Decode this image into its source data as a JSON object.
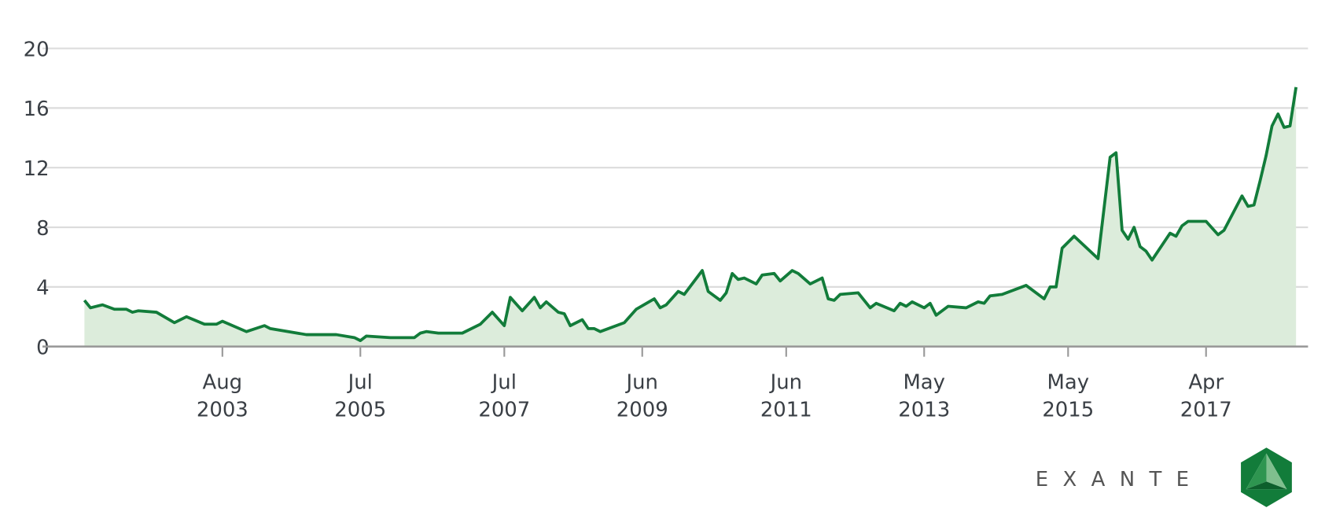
{
  "brand": "EXANTE",
  "chart_data": {
    "type": "line",
    "x": [
      "2001-09",
      "2001-10",
      "2001-12",
      "2002-02",
      "2002-04",
      "2002-05",
      "2002-06",
      "2002-09",
      "2002-12",
      "2003-02",
      "2003-05",
      "2003-07",
      "2003-08",
      "2003-12",
      "2004-03",
      "2004-04",
      "2004-10",
      "2005-03",
      "2005-06",
      "2005-07",
      "2005-08",
      "2005-12",
      "2006-04",
      "2006-05",
      "2006-06",
      "2006-08",
      "2006-12",
      "2007-03",
      "2007-05",
      "2007-07",
      "2007-08",
      "2007-10",
      "2007-12",
      "2008-01",
      "2008-02",
      "2008-04",
      "2008-05",
      "2008-06",
      "2008-08",
      "2008-09",
      "2008-10",
      "2008-11",
      "2009-03",
      "2009-05",
      "2009-08",
      "2009-09",
      "2009-10",
      "2009-12",
      "2010-01",
      "2010-04",
      "2010-05",
      "2010-07",
      "2010-08",
      "2010-09",
      "2010-10",
      "2010-11",
      "2011-01",
      "2011-02",
      "2011-04",
      "2011-05",
      "2011-07",
      "2011-08",
      "2011-10",
      "2011-12",
      "2012-01",
      "2012-02",
      "2012-03",
      "2012-06",
      "2012-08",
      "2012-09",
      "2012-12",
      "2013-01",
      "2013-02",
      "2013-03",
      "2013-05",
      "2013-06",
      "2013-07",
      "2013-09",
      "2013-12",
      "2014-02",
      "2014-03",
      "2014-04",
      "2014-06",
      "2014-10",
      "2015-01",
      "2015-02",
      "2015-03",
      "2015-04",
      "2015-06",
      "2015-10",
      "2015-12",
      "2016-01",
      "2016-02",
      "2016-03",
      "2016-04",
      "2016-05",
      "2016-06",
      "2016-07",
      "2016-10",
      "2016-11",
      "2016-12",
      "2017-01",
      "2017-04",
      "2017-06",
      "2017-07",
      "2017-10",
      "2017-11",
      "2017-12",
      "2018-01",
      "2018-02",
      "2018-03",
      "2018-04",
      "2018-05",
      "2018-06",
      "2018-07"
    ],
    "series": [
      {
        "color": "#127c3a",
        "fill": "#dcecdb",
        "values": [
          3.1,
          2.6,
          2.8,
          2.5,
          2.5,
          2.3,
          2.4,
          2.3,
          1.6,
          2.0,
          1.5,
          1.5,
          1.7,
          1.0,
          1.4,
          1.2,
          0.8,
          0.8,
          0.6,
          0.4,
          0.7,
          0.6,
          0.6,
          0.9,
          1.0,
          0.9,
          0.9,
          1.5,
          2.3,
          1.4,
          3.3,
          2.4,
          3.3,
          2.6,
          3.0,
          2.3,
          2.2,
          1.4,
          1.8,
          1.2,
          1.2,
          1.0,
          1.6,
          2.5,
          3.2,
          2.6,
          2.8,
          3.7,
          3.5,
          5.1,
          3.7,
          3.1,
          3.6,
          4.9,
          4.5,
          4.6,
          4.2,
          4.8,
          4.9,
          4.4,
          5.1,
          4.9,
          4.2,
          4.6,
          3.2,
          3.1,
          3.5,
          3.6,
          2.6,
          2.9,
          2.4,
          2.9,
          2.7,
          3.0,
          2.6,
          2.9,
          2.1,
          2.7,
          2.6,
          3.0,
          2.9,
          3.4,
          3.5,
          4.1,
          3.2,
          4.0,
          4.0,
          6.6,
          7.4,
          5.9,
          12.7,
          13.0,
          7.8,
          7.2,
          8.0,
          6.7,
          6.4,
          5.8,
          7.6,
          7.4,
          8.1,
          8.4,
          8.4,
          7.5,
          7.8,
          10.1,
          9.4,
          9.5,
          11.1,
          12.8,
          14.8,
          15.6,
          14.7,
          14.8,
          17.4
        ]
      }
    ],
    "xlim": [
      "2001-02",
      "2018-09"
    ],
    "xticks": [
      {
        "value": "2003-08",
        "label": [
          "Aug",
          "2003"
        ]
      },
      {
        "value": "2005-07",
        "label": [
          "Jul",
          "2005"
        ]
      },
      {
        "value": "2007-07",
        "label": [
          "Jul",
          "2007"
        ]
      },
      {
        "value": "2009-06",
        "label": [
          "Jun",
          "2009"
        ]
      },
      {
        "value": "2011-06",
        "label": [
          "Jun",
          "2011"
        ]
      },
      {
        "value": "2013-05",
        "label": [
          "May",
          "2013"
        ]
      },
      {
        "value": "2015-05",
        "label": [
          "May",
          "2015"
        ]
      },
      {
        "value": "2017-04",
        "label": [
          "Apr",
          "2017"
        ]
      }
    ],
    "ylim": [
      0,
      20
    ],
    "yticks": [
      0,
      4,
      8,
      12,
      16,
      20
    ],
    "grid": true
  }
}
